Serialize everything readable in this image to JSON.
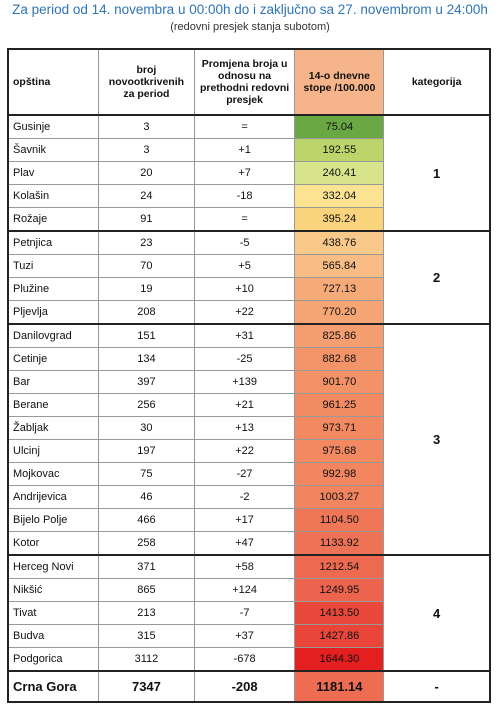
{
  "header": {
    "title": "Za period od 14. novembra u 00:00h do i zaključno sa 27. novembrom u 24:00h",
    "subtitle": "(redovni presjek stanja subotom)"
  },
  "table": {
    "columns": [
      "opština",
      "broj novootkrivenih za period",
      "Promjena broja u odnosu na prethodni redovni presjek",
      "14-o dnevne stope /100.000",
      "kategorija"
    ],
    "groups": [
      {
        "category": "1",
        "rows": [
          [
            "Gusinje",
            "3",
            "=",
            "75.04"
          ],
          [
            "Šavnik",
            "3",
            "+1",
            "192.55"
          ],
          [
            "Plav",
            "20",
            "+7",
            "240.41"
          ],
          [
            "Kolašin",
            "24",
            "-18",
            "332.04"
          ],
          [
            "Rožaje",
            "91",
            "=",
            "395.24"
          ]
        ],
        "colors": [
          "#6aa843",
          "#bcd56b",
          "#d8e48b",
          "#fbe391",
          "#fad47c"
        ]
      },
      {
        "category": "2",
        "rows": [
          [
            "Petnjica",
            "23",
            "-5",
            "438.76"
          ],
          [
            "Tuzi",
            "70",
            "+5",
            "565.84"
          ],
          [
            "Plužine",
            "19",
            "+10",
            "727.13"
          ],
          [
            "Pljevlja",
            "208",
            "+22",
            "770.20"
          ]
        ],
        "colors": [
          "#f9c98a",
          "#f8bc84",
          "#f6aa78",
          "#f6a574"
        ]
      },
      {
        "category": "3",
        "rows": [
          [
            "Danilovgrad",
            "151",
            "+31",
            "825.86"
          ],
          [
            "Cetinje",
            "134",
            "-25",
            "882.68"
          ],
          [
            "Bar",
            "397",
            "+139",
            "901.70"
          ],
          [
            "Berane",
            "256",
            "+21",
            "961.25"
          ],
          [
            "Žabljak",
            "30",
            "+13",
            "973.71"
          ],
          [
            "Ulcinj",
            "197",
            "+22",
            "975.68"
          ],
          [
            "Mojkovac",
            "75",
            "-27",
            "992.98"
          ],
          [
            "Andrijevica",
            "46",
            "-2",
            "1003.27"
          ],
          [
            "Bijelo Polje",
            "466",
            "+17",
            "1104.50"
          ],
          [
            "Kotor",
            "258",
            "+47",
            "1133.92"
          ]
        ],
        "colors": [
          "#f59e6f",
          "#f49569",
          "#f39267",
          "#f28a62",
          "#f28961",
          "#f28961",
          "#f28660",
          "#f1855f",
          "#ef7758",
          "#ee7356"
        ]
      },
      {
        "category": "4",
        "rows": [
          [
            "Herceg Novi",
            "371",
            "+58",
            "1212.54"
          ],
          [
            "Nikšić",
            "865",
            "+124",
            "1249.95"
          ],
          [
            "Tivat",
            "213",
            "-7",
            "1413.50"
          ],
          [
            "Budva",
            "315",
            "+37",
            "1427.86"
          ],
          [
            "Podgorica",
            "3112",
            "-678",
            "1644.30"
          ]
        ],
        "colors": [
          "#ed6a50",
          "#ec644d",
          "#e9483b",
          "#e94639",
          "#e41f1f"
        ]
      }
    ],
    "total": [
      "Crna Gora",
      "7347",
      "-208",
      "1181.14",
      "-"
    ],
    "total_color": "#ee6c51"
  }
}
